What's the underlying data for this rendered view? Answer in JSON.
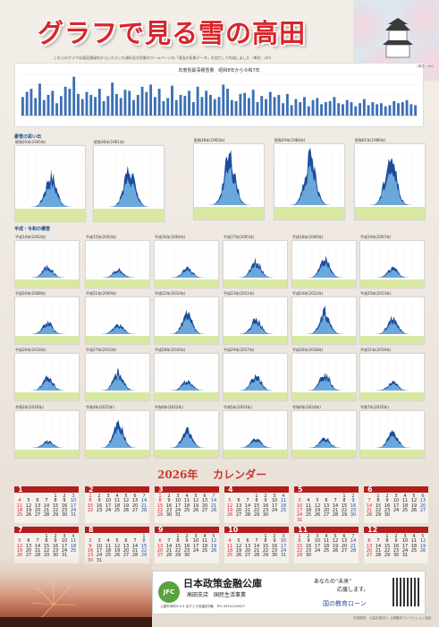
{
  "title": "グラフで見る雪の高田",
  "intro": "これらのグラフは高田測候所からいただいた資料及び気象庁ホームページの「過去の気象データ」を加工して作成しました（単位：cm）",
  "annual": {
    "title": "年度別最深積雪量　昭和8年から令和7年",
    "note": "（単位：cm）"
  },
  "sections": {
    "memories": "豪雪の思い出",
    "heisei_reiwa": "平成・令和の積雪"
  },
  "memories_cards": [
    {
      "label": "昭和20年(1945年)"
    },
    {
      "label": "昭和36年(1961年)"
    },
    {
      "label": "昭和38年(1963年)"
    },
    {
      "label": "昭和59年(1984年)"
    },
    {
      "label": "昭和61年(1986年)"
    }
  ],
  "heisei_cards": [
    {
      "label": "平成14年(2002年)"
    },
    {
      "label": "平成15年(2003年)"
    },
    {
      "label": "平成16年(2004年)"
    },
    {
      "label": "平成17年(2005年)"
    },
    {
      "label": "平成18年(2006年)"
    },
    {
      "label": "平成19年(2007年)"
    },
    {
      "label": "平成20年(2008年)"
    },
    {
      "label": "平成21年(2009年)"
    },
    {
      "label": "平成22年(2010年)"
    },
    {
      "label": "平成23年(2011年)"
    },
    {
      "label": "平成24年(2012年)"
    },
    {
      "label": "平成25年(2013年)"
    },
    {
      "label": "平成26年(2014年)"
    },
    {
      "label": "平成27年(2015年)"
    },
    {
      "label": "平成28年(2016年)"
    },
    {
      "label": "平成29年(2017年)"
    },
    {
      "label": "平成30年(2018年)"
    },
    {
      "label": "平成31年(2019年)"
    },
    {
      "label": "令和2年(2020年)"
    },
    {
      "label": "令和3年(2021年)"
    },
    {
      "label": "令和4年(2022年)"
    },
    {
      "label": "令和5年(2023年)"
    },
    {
      "label": "令和6年(2024年)"
    },
    {
      "label": "令和7年(2025年)"
    }
  ],
  "calendar": {
    "year": "2026年",
    "label": "カレンダー",
    "months": [
      "1",
      "2",
      "3",
      "4",
      "5",
      "6",
      "7",
      "8",
      "9",
      "10",
      "11",
      "12"
    ]
  },
  "ad": {
    "logo": "JFC",
    "name": "日本政策金融公庫",
    "branch": "高田支店　国民生活事業",
    "address": "上越市本町5-4-5 あすとぴあ高田2階　TEL 0570-020527",
    "slogan1": "あなたの“未来”",
    "slogan2": "応援します。",
    "loan": "国の教育ローン"
  },
  "footnote": "写真提供　公益社団法人 上越観光コンベンション協会",
  "colors": {
    "title": "#d8262b",
    "month_header": "#b01e1e",
    "bar": "#3a6fb5",
    "snow_dark": "#1c4c9c",
    "snow_light": "#6aa8dc",
    "card_footer": "#d9e8a2"
  },
  "chart_data": {
    "type": "bar",
    "title": "年度別最深積雪量　昭和8年から令和7年",
    "ylabel": "cm",
    "values": [
      180,
      230,
      260,
      170,
      310,
      150,
      200,
      240,
      120,
      190,
      280,
      260,
      377,
      210,
      160,
      230,
      200,
      180,
      260,
      140,
      190,
      320,
      210,
      170,
      250,
      240,
      150,
      200,
      280,
      230,
      300,
      180,
      260,
      140,
      170,
      290,
      150,
      200,
      190,
      240,
      130,
      280,
      180,
      240,
      200,
      160,
      180,
      300,
      260,
      150,
      140,
      210,
      220,
      170,
      250,
      130,
      190,
      160,
      230,
      180,
      200,
      120,
      210,
      100,
      160,
      130,
      180,
      90,
      150,
      170,
      110,
      130,
      140,
      180,
      120,
      110,
      150,
      130,
      90,
      120,
      160,
      100,
      130,
      110,
      120,
      90,
      100,
      140,
      120,
      130,
      150,
      110,
      100
    ]
  }
}
